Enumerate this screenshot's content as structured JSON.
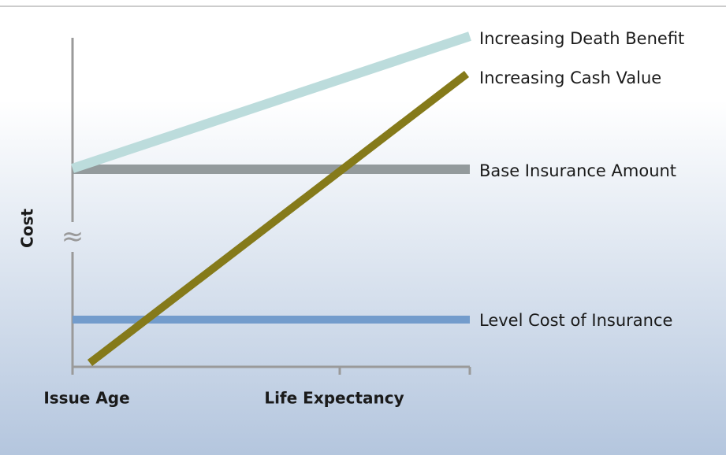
{
  "diagram": {
    "y_axis_label": "Cost",
    "axis_break": "≈",
    "x_axis_labels": [
      "Issue Age",
      "Life Expectancy"
    ],
    "lines": [
      {
        "label": "Increasing Death Benefit"
      },
      {
        "label": "Increasing Cash Value"
      },
      {
        "label": "Base Insurance Amount"
      },
      {
        "label": "Level Cost of Insurance"
      }
    ]
  }
}
